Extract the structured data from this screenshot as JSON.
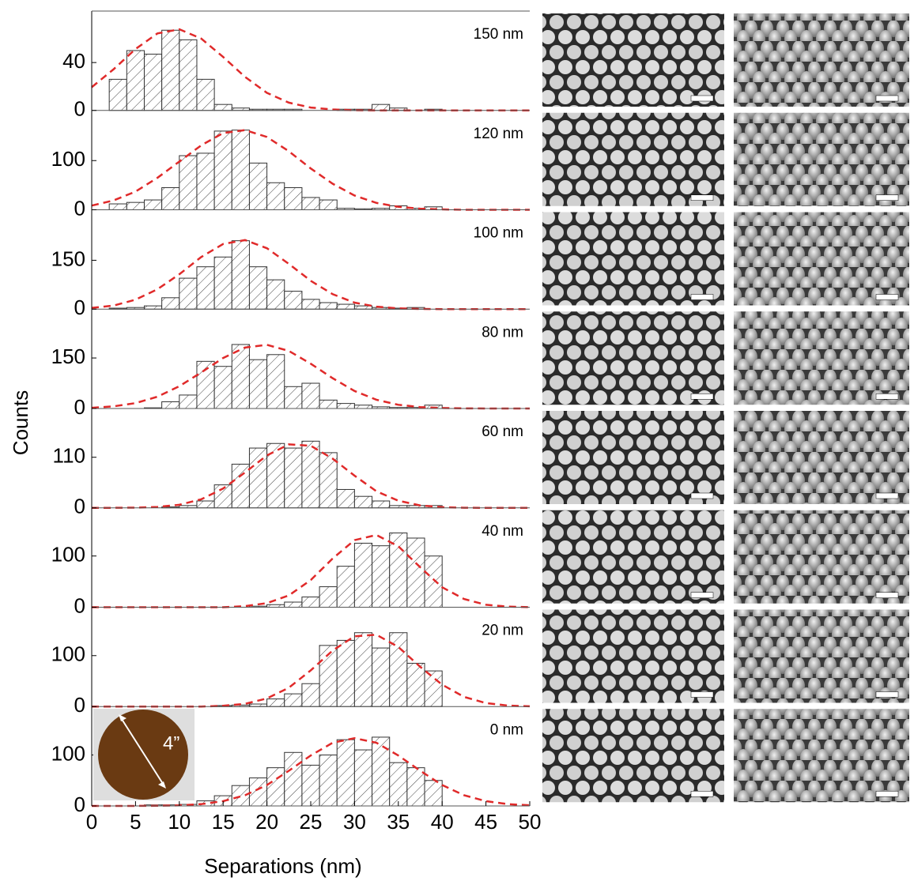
{
  "chart_data": [
    {
      "type": "histogram",
      "label": "150 nm",
      "color": "#333333",
      "bins": [
        2,
        4,
        6,
        8,
        10,
        12,
        14,
        16,
        18,
        20,
        22,
        24,
        26,
        28,
        30,
        32,
        34,
        36,
        38,
        40
      ],
      "values": [
        26,
        50,
        47,
        67,
        59,
        26,
        5,
        2,
        1,
        1,
        1,
        0,
        0,
        1,
        1,
        5,
        2,
        0,
        1
      ],
      "fit": {
        "color": "#e02a2a",
        "x": [
          0,
          2.5,
          5,
          7.5,
          10,
          12.5,
          15,
          17.5,
          20,
          22.5,
          25,
          27.5,
          30,
          32.5,
          35,
          37.5,
          40,
          42.5,
          45,
          47.5,
          50
        ],
        "values": [
          19.4,
          34.4,
          51.3,
          64.3,
          67.8,
          60,
          44.7,
          28,
          14.7,
          6.5,
          2.4,
          0.8,
          0.2,
          0,
          0,
          0,
          0,
          0,
          0,
          0,
          0
        ]
      },
      "xlim": [
        0,
        50
      ],
      "ylim": [
        0,
        83
      ],
      "yticks": [
        0,
        40
      ]
    },
    {
      "type": "histogram",
      "label": "120 nm",
      "color": "#333333",
      "bins": [
        2,
        4,
        6,
        8,
        10,
        12,
        14,
        16,
        18,
        20,
        22,
        24,
        26,
        28,
        30,
        32,
        34,
        36,
        38,
        40
      ],
      "values": [
        12,
        15,
        20,
        45,
        110,
        115,
        160,
        162,
        95,
        55,
        45,
        25,
        20,
        3,
        2,
        3,
        8,
        3,
        6
      ],
      "fit": {
        "color": "#e02a2a",
        "x": [
          0,
          2.5,
          5,
          7.5,
          10,
          12.5,
          15,
          17.5,
          20,
          22.5,
          25,
          27.5,
          30,
          32.5,
          35,
          37.5,
          40,
          42.5,
          45,
          47.5,
          50
        ],
        "values": [
          8.5,
          19,
          37,
          65,
          98,
          131,
          156,
          162,
          148,
          119,
          84,
          53,
          29,
          14,
          6,
          2.2,
          0.7,
          0,
          0,
          0,
          0
        ]
      },
      "xlim": [
        0,
        50
      ],
      "ylim": [
        0,
        202
      ],
      "yticks": [
        0,
        100
      ]
    },
    {
      "type": "histogram",
      "label": "100 nm",
      "color": "#333333",
      "bins": [
        2,
        4,
        6,
        8,
        10,
        12,
        14,
        16,
        18,
        20,
        22,
        24,
        26,
        28,
        30,
        32,
        34,
        36,
        38,
        40
      ],
      "values": [
        3,
        5,
        10,
        35,
        95,
        130,
        160,
        210,
        130,
        90,
        55,
        30,
        20,
        15,
        10,
        5,
        3,
        5,
        0
      ],
      "fit": {
        "color": "#e02a2a",
        "x": [
          0,
          2.5,
          5,
          7.5,
          10,
          12.5,
          15,
          17.5,
          20,
          22.5,
          25,
          27.5,
          30,
          32.5,
          35,
          37.5,
          40,
          42.5,
          45,
          47.5,
          50
        ],
        "values": [
          3.8,
          11,
          29,
          61,
          107,
          160,
          200,
          212,
          187,
          139,
          87,
          46,
          20,
          7.6,
          2.4,
          0.6,
          0,
          0,
          0,
          0,
          0
        ]
      },
      "xlim": [
        0,
        50
      ],
      "ylim": [
        0,
        305
      ],
      "yticks": [
        0,
        150
      ]
    },
    {
      "type": "histogram",
      "label": "80 nm",
      "color": "#333333",
      "bins": [
        2,
        4,
        6,
        8,
        10,
        12,
        14,
        16,
        18,
        20,
        22,
        24,
        26,
        28,
        30,
        32,
        34,
        36,
        38,
        40
      ],
      "values": [
        0,
        0,
        2,
        20,
        40,
        140,
        125,
        190,
        145,
        160,
        65,
        75,
        25,
        15,
        10,
        5,
        3,
        3,
        10
      ],
      "fit": {
        "color": "#e02a2a",
        "x": [
          0,
          2.5,
          5,
          7.5,
          10,
          12.5,
          15,
          17.5,
          20,
          22.5,
          25,
          27.5,
          30,
          32.5,
          35,
          37.5,
          40,
          42.5,
          45,
          47.5,
          50
        ],
        "values": [
          2.2,
          6.4,
          16,
          35,
          66,
          107,
          150,
          181,
          189,
          171,
          133,
          90,
          52,
          26,
          11,
          4.2,
          1.4,
          0.4,
          0,
          0,
          0
        ]
      },
      "xlim": [
        0,
        50
      ],
      "ylim": [
        0,
        295
      ],
      "yticks": [
        0,
        150
      ]
    },
    {
      "type": "histogram",
      "label": "60 nm",
      "color": "#333333",
      "bins": [
        2,
        4,
        6,
        8,
        10,
        12,
        14,
        16,
        18,
        20,
        22,
        24,
        26,
        28,
        30,
        32,
        34,
        36,
        38,
        40
      ],
      "values": [
        0,
        0,
        0,
        2,
        5,
        15,
        50,
        95,
        130,
        140,
        130,
        145,
        120,
        40,
        25,
        15,
        5,
        5,
        5
      ],
      "fit": {
        "color": "#e02a2a",
        "x": [
          0,
          2.5,
          5,
          7.5,
          10,
          12.5,
          15,
          17.5,
          20,
          22.5,
          25,
          27.5,
          30,
          32.5,
          35,
          37.5,
          40,
          42.5,
          45,
          47.5,
          50
        ],
        "values": [
          0,
          0.1,
          0.5,
          2,
          6.7,
          18.6,
          42,
          77,
          114,
          138,
          135,
          107,
          70,
          36,
          15.5,
          5.3,
          1.5,
          0.3,
          0,
          0,
          0
        ]
      },
      "xlim": [
        0,
        50
      ],
      "ylim": [
        0,
        216
      ],
      "yticks": [
        0,
        110
      ]
    },
    {
      "type": "histogram",
      "label": "40 nm",
      "color": "#333333",
      "bins": [
        2,
        4,
        6,
        8,
        10,
        12,
        14,
        16,
        18,
        20,
        22,
        24,
        26,
        28,
        30,
        32,
        34,
        36,
        38,
        40
      ],
      "values": [
        0,
        0,
        0,
        0,
        0,
        0,
        0,
        0,
        2,
        5,
        10,
        20,
        40,
        80,
        125,
        120,
        145,
        135,
        100
      ],
      "fit": {
        "color": "#e02a2a",
        "x": [
          0,
          2.5,
          5,
          7.5,
          10,
          12.5,
          15,
          17.5,
          20,
          22.5,
          25,
          27.5,
          30,
          32.5,
          35,
          37.5,
          40,
          42.5,
          45,
          47.5,
          50
        ],
        "values": [
          0,
          0,
          0,
          0,
          0,
          0,
          0,
          2.1,
          8,
          23,
          53,
          95,
          131,
          141,
          119,
          78,
          39,
          16,
          4.8,
          1.2,
          0.2
        ]
      },
      "xlim": [
        0,
        50
      ],
      "ylim": [
        0,
        194
      ],
      "yticks": [
        0,
        100
      ]
    },
    {
      "type": "histogram",
      "label": "20 nm",
      "color": "#333333",
      "bins": [
        2,
        4,
        6,
        8,
        10,
        12,
        14,
        16,
        18,
        20,
        22,
        24,
        26,
        28,
        30,
        32,
        34,
        36,
        38,
        40
      ],
      "values": [
        0,
        0,
        0,
        0,
        0,
        0,
        2,
        3,
        5,
        15,
        25,
        45,
        120,
        130,
        145,
        115,
        145,
        85,
        70
      ],
      "fit": {
        "color": "#e02a2a",
        "x": [
          0,
          2.5,
          5,
          7.5,
          10,
          12.5,
          15,
          17.5,
          20,
          22.5,
          25,
          27.5,
          30,
          32.5,
          35,
          37.5,
          40,
          42.5,
          45,
          47.5,
          50
        ],
        "values": [
          0,
          0,
          0,
          0,
          0,
          0,
          1.6,
          5.4,
          16,
          37,
          71,
          110,
          138,
          141,
          117,
          78,
          43,
          19,
          6.9,
          2,
          0.5
        ]
      },
      "xlim": [
        0,
        50
      ],
      "ylim": [
        0,
        195
      ],
      "yticks": [
        0,
        100
      ]
    },
    {
      "type": "histogram",
      "label": "0 nm",
      "color": "#333333",
      "bins": [
        2,
        4,
        6,
        8,
        10,
        12,
        14,
        16,
        18,
        20,
        22,
        24,
        26,
        28,
        30,
        32,
        34,
        36,
        38,
        40
      ],
      "values": [
        0,
        0,
        2,
        2,
        3,
        10,
        20,
        40,
        55,
        75,
        105,
        80,
        100,
        130,
        110,
        135,
        85,
        75,
        50
      ],
      "fit": {
        "color": "#e02a2a",
        "x": [
          0,
          2.5,
          5,
          7.5,
          10,
          12.5,
          15,
          17.5,
          20,
          22.5,
          25,
          27.5,
          30,
          32.5,
          35,
          37.5,
          40,
          42.5,
          45,
          47.5,
          50
        ],
        "values": [
          0,
          0,
          0.1,
          0.35,
          1.2,
          3.6,
          9.4,
          21,
          41,
          69,
          99,
          124,
          133,
          124,
          99,
          69,
          41,
          21,
          9.4,
          3.6,
          1.2
        ]
      },
      "xlim": [
        0,
        50
      ],
      "ylim": [
        0,
        195
      ],
      "yticks": [
        0,
        100
      ],
      "xticks": [
        0,
        5,
        10,
        15,
        20,
        25,
        30,
        35,
        40,
        45,
        50
      ],
      "xlabel": "Separations (nm)",
      "ylabel": "Counts",
      "annotation": "4”"
    }
  ]
}
